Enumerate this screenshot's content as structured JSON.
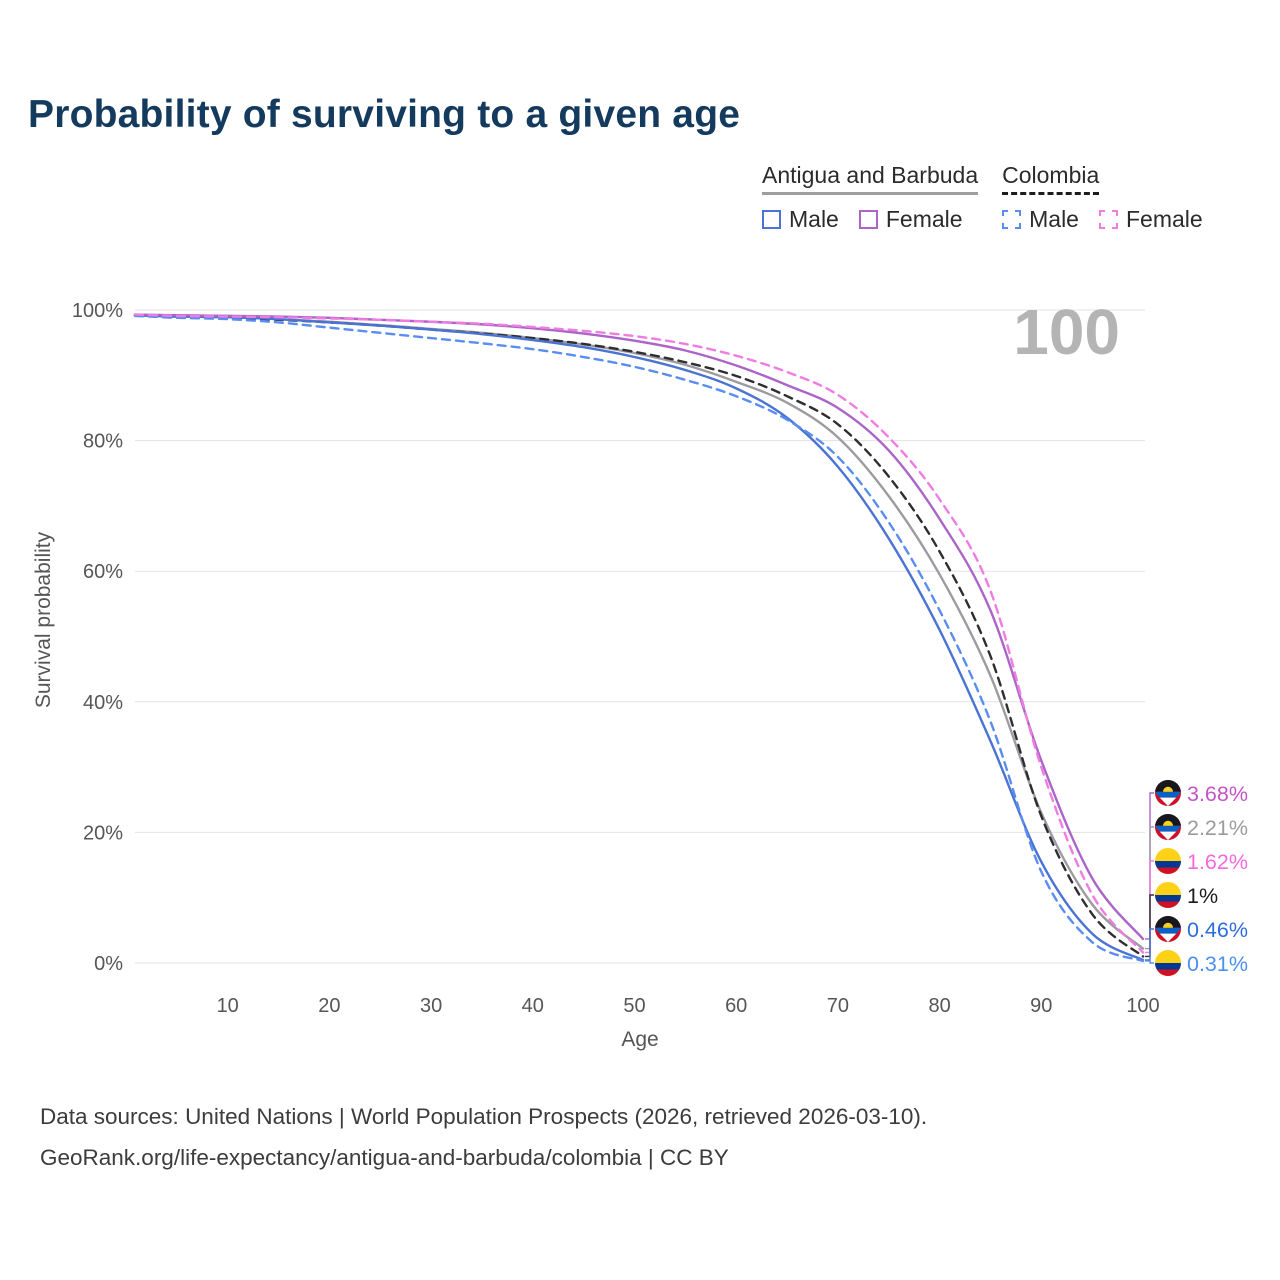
{
  "title": "Probability of surviving to a given age",
  "age_marker": "100",
  "legend": {
    "groups": [
      {
        "label": "Antigua and Barbuda",
        "line_style": "solid",
        "underline_color": "#9e9e9e",
        "items": [
          {
            "label": "Male",
            "color": "#4a73d4",
            "dashed": false
          },
          {
            "label": "Female",
            "color": "#ab64c8",
            "dashed": false
          }
        ]
      },
      {
        "label": "Colombia",
        "line_style": "dashed",
        "underline_color": "#1c1c1c",
        "items": [
          {
            "label": "Male",
            "color": "#5a8df2",
            "dashed": true
          },
          {
            "label": "Female",
            "color": "#f07ce2",
            "dashed": true
          }
        ]
      }
    ]
  },
  "chart_data": {
    "type": "line",
    "title": "Probability of surviving to a given age",
    "xlabel": "Age",
    "ylabel": "Survival probability",
    "xlim": [
      0,
      100
    ],
    "ylim": [
      0,
      100
    ],
    "x_ticks": [
      10,
      20,
      30,
      40,
      50,
      60,
      70,
      80,
      90,
      100
    ],
    "y_ticks": [
      0,
      20,
      40,
      60,
      80,
      100
    ],
    "y_tick_suffix": "%",
    "grid": "horizontal",
    "legend_position": "top-right",
    "x": [
      0,
      5,
      10,
      15,
      20,
      25,
      30,
      35,
      40,
      45,
      50,
      55,
      60,
      65,
      70,
      75,
      80,
      85,
      90,
      95,
      100
    ],
    "series": [
      {
        "id": "antigua-barbuda-female",
        "name": "Antigua and Barbuda — Female",
        "country": "Antigua and Barbuda",
        "sex": "Female",
        "color": "#ab64c8",
        "dash": "solid",
        "flag": "antigua-barbuda",
        "end_label": "3.68%",
        "label_color": "#c454c8",
        "values": [
          99.3,
          99.2,
          99.1,
          99.0,
          98.8,
          98.5,
          98.2,
          97.8,
          97.2,
          96.4,
          95.3,
          93.8,
          91.5,
          88.5,
          85.0,
          78.5,
          68.0,
          54.0,
          31.0,
          13.0,
          3.68
        ]
      },
      {
        "id": "antigua-barbuda-both",
        "name": "Antigua and Barbuda — Both sexes",
        "country": "Antigua and Barbuda",
        "sex": "Both",
        "color": "#9b9ba1",
        "dash": "solid",
        "flag": "antigua-barbuda",
        "end_label": "2.21%",
        "label_color": "#9b9b9b",
        "values": [
          99.2,
          99.0,
          98.9,
          98.6,
          98.2,
          97.7,
          97.1,
          96.5,
          95.7,
          94.7,
          93.4,
          91.6,
          89.0,
          85.8,
          80.5,
          71.5,
          59.5,
          44.0,
          23.0,
          9.0,
          2.21
        ]
      },
      {
        "id": "colombia-female",
        "name": "Colombia — Female",
        "country": "Colombia",
        "sex": "Female",
        "color": "#f07ce2",
        "dash": "dashed",
        "flag": "colombia",
        "end_label": "1.62%",
        "label_color": "#f468e0",
        "values": [
          99.3,
          99.1,
          99.0,
          98.9,
          98.7,
          98.5,
          98.2,
          97.9,
          97.4,
          96.8,
          96.0,
          94.8,
          93.0,
          90.5,
          87.0,
          80.5,
          71.0,
          57.0,
          30.0,
          10.5,
          1.62
        ]
      },
      {
        "id": "colombia-both",
        "name": "Colombia — Both sexes",
        "country": "Colombia",
        "sex": "Both",
        "color": "#2e2e2e",
        "dash": "dashed",
        "flag": "colombia",
        "end_label": "1%",
        "label_color": "#1c1c1c",
        "values": [
          99.2,
          99.0,
          98.8,
          98.5,
          98.1,
          97.6,
          97.0,
          96.4,
          95.7,
          94.8,
          93.6,
          92.0,
          89.9,
          86.8,
          82.5,
          74.5,
          63.0,
          47.0,
          22.5,
          7.5,
          1.0
        ]
      },
      {
        "id": "antigua-barbuda-male",
        "name": "Antigua and Barbuda — Male",
        "country": "Antigua and Barbuda",
        "sex": "Male",
        "color": "#4a73d4",
        "dash": "solid",
        "flag": "antigua-barbuda",
        "end_label": "0.46%",
        "label_color": "#2f6bdc",
        "values": [
          99.2,
          99.0,
          98.9,
          98.6,
          98.1,
          97.6,
          97.0,
          96.3,
          95.4,
          94.3,
          92.8,
          90.8,
          88.0,
          83.5,
          76.0,
          65.0,
          51.0,
          34.0,
          15.5,
          4.5,
          0.46
        ]
      },
      {
        "id": "colombia-male",
        "name": "Colombia — Male",
        "country": "Colombia",
        "sex": "Male",
        "color": "#5a8df2",
        "dash": "dashed",
        "flag": "colombia",
        "end_label": "0.31%",
        "label_color": "#4b8ff2",
        "values": [
          99.1,
          98.8,
          98.6,
          98.1,
          97.3,
          96.5,
          95.7,
          94.9,
          94.0,
          92.8,
          91.3,
          89.3,
          86.8,
          83.2,
          77.5,
          67.5,
          54.0,
          37.0,
          14.0,
          3.2,
          0.31
        ]
      }
    ]
  },
  "footer": {
    "line1": "Data sources: United Nations | World Population Prospects (2026, retrieved 2026-03-10).",
    "line2": "GeoRank.org/life-expectancy/antigua-and-barbuda/colombia | CC BY"
  }
}
